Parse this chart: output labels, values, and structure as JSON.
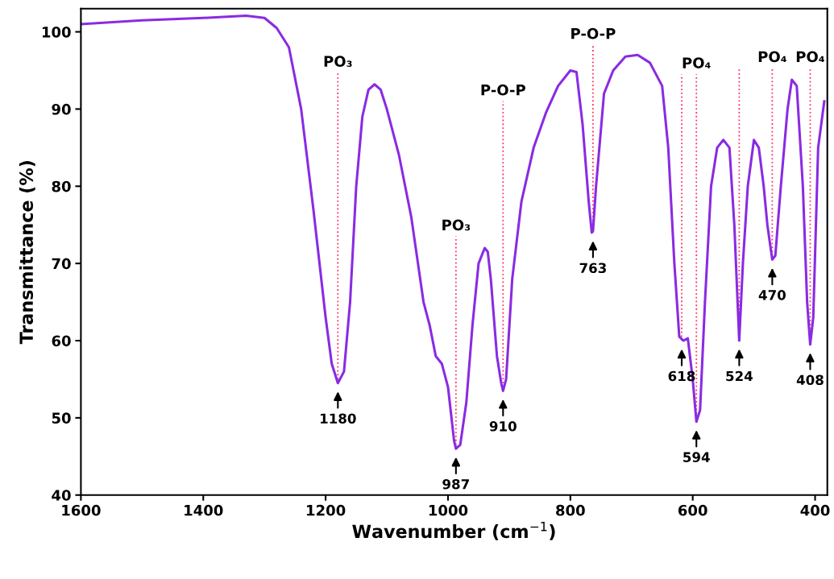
{
  "chart_data": {
    "type": "line",
    "xlabel": "Wavenumber (cm$^{−1}$)",
    "ylabel": "Transmittance (%)",
    "x": [
      1600,
      1500,
      1400,
      1330,
      1300,
      1280,
      1260,
      1240,
      1220,
      1200,
      1190,
      1180,
      1170,
      1160,
      1150,
      1140,
      1130,
      1120,
      1110,
      1100,
      1080,
      1060,
      1040,
      1030,
      1020,
      1010,
      1000,
      990,
      987,
      980,
      970,
      960,
      950,
      940,
      935,
      930,
      920,
      913,
      910,
      905,
      895,
      880,
      860,
      840,
      820,
      800,
      790,
      780,
      770,
      765,
      763,
      758,
      745,
      730,
      710,
      690,
      670,
      650,
      640,
      630,
      622,
      615,
      608,
      600,
      594,
      588,
      580,
      570,
      560,
      550,
      540,
      532,
      524,
      518,
      510,
      500,
      492,
      484,
      478,
      470,
      465,
      456,
      445,
      438,
      430,
      420,
      413,
      408,
      403,
      395,
      385
    ],
    "series": [
      {
        "color": "#8a2be2",
        "values": [
          101,
          101.5,
          101.8,
          102.1,
          101.8,
          100.5,
          98,
          90,
          77,
          63,
          57,
          54.5,
          56,
          65,
          80,
          89,
          92.5,
          93.2,
          92.5,
          90,
          84,
          76,
          65,
          62,
          58,
          57,
          54,
          47,
          46,
          46.5,
          52,
          62,
          70,
          72,
          71.5,
          68,
          58,
          54.5,
          53.5,
          55,
          68,
          78,
          85,
          89.5,
          93,
          95,
          94.8,
          88,
          78,
          74,
          74.2,
          80,
          92,
          95,
          96.8,
          97,
          96,
          93,
          85,
          70,
          60.5,
          60,
          60.3,
          55,
          49.5,
          51,
          65,
          80,
          85,
          86,
          85,
          75,
          60,
          70,
          80,
          86,
          85,
          80,
          75,
          70.5,
          71,
          80,
          90,
          93.8,
          93,
          80,
          65,
          59.5,
          63,
          85,
          91
        ]
      }
    ],
    "xlim": [
      1600,
      380
    ],
    "ylim": [
      40,
      103
    ],
    "xticks": [
      1600,
      1400,
      1200,
      1000,
      800,
      600,
      400
    ],
    "yticks": [
      40,
      50,
      60,
      70,
      80,
      90,
      100
    ],
    "grid": false,
    "legend": false,
    "line_style": "solid",
    "marker": "none",
    "annotations": [
      {
        "text": "1180",
        "x": 1180,
        "y": 54.5
      },
      {
        "text": "987",
        "x": 987,
        "y": 46
      },
      {
        "text": "910",
        "x": 910,
        "y": 53.5
      },
      {
        "text": "763",
        "x": 763,
        "y": 74
      },
      {
        "text": "618",
        "x": 618,
        "y": 60
      },
      {
        "text": "594",
        "x": 594,
        "y": 49.5
      },
      {
        "text": "524",
        "x": 524,
        "y": 60
      },
      {
        "text": "470",
        "x": 470,
        "y": 70.5
      },
      {
        "text": "408",
        "x": 408,
        "y": 59.5
      },
      {
        "text": "PO₃",
        "x": 1180,
        "y": 54.5
      },
      {
        "text": "PO₃",
        "x": 987,
        "y": 46
      },
      {
        "text": "P-O-P",
        "x": 910,
        "y": 53.5
      },
      {
        "text": "P-O-P",
        "x": 763,
        "y": 74
      },
      {
        "text": "PO₄",
        "x": 594,
        "y": 49.5
      },
      {
        "text": "PO₄",
        "x": 470,
        "y": 70.5
      },
      {
        "text": "PO₄",
        "x": 408,
        "y": 59.5
      }
    ]
  }
}
